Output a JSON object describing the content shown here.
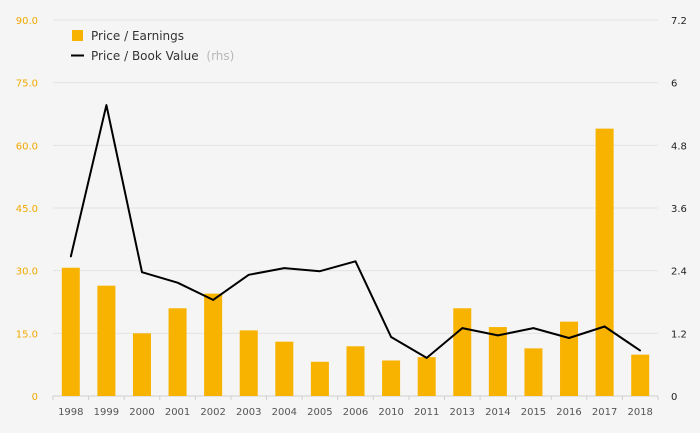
{
  "chart_data": {
    "type": "bar+line",
    "categories": [
      "1998",
      "1999",
      "2000",
      "2001",
      "2002",
      "2003",
      "2004",
      "2005",
      "2006",
      "2010",
      "2011",
      "2013",
      "2014",
      "2015",
      "2016",
      "2017",
      "2018"
    ],
    "series": [
      {
        "name": "Price / Earnings",
        "type": "bar",
        "axis": "left",
        "color": "#f8b200",
        "values": [
          30.7,
          26.4,
          15.0,
          21.0,
          24.5,
          15.7,
          13.0,
          8.2,
          11.9,
          8.5,
          9.3,
          21.0,
          16.5,
          11.4,
          17.8,
          64.0,
          9.9
        ]
      },
      {
        "name": "Price / Book Value",
        "type": "line",
        "axis": "right",
        "color": "#000000",
        "values": [
          2.67,
          5.57,
          2.37,
          2.17,
          1.84,
          2.32,
          2.45,
          2.39,
          2.58,
          1.13,
          0.73,
          1.3,
          1.16,
          1.3,
          1.11,
          1.33,
          0.87
        ]
      }
    ],
    "legend": {
      "entries": [
        {
          "label": "Price / Earnings",
          "suffix": ""
        },
        {
          "label": "Price / Book Value",
          "suffix": "(rhs)"
        }
      ],
      "position": "top-left"
    },
    "y_left": {
      "ylim": [
        0,
        90
      ],
      "ticks": [
        "0",
        "15.0",
        "30.0",
        "45.0",
        "60.0",
        "75.0",
        "90.0"
      ],
      "color": "#f2a900"
    },
    "y_right": {
      "ylim": [
        0,
        7.2
      ],
      "ticks": [
        "0",
        "1.2",
        "2.4",
        "3.6",
        "4.8",
        "6",
        "7.2"
      ]
    },
    "grid": true,
    "title": "",
    "xlabel": "",
    "ylabel": ""
  }
}
